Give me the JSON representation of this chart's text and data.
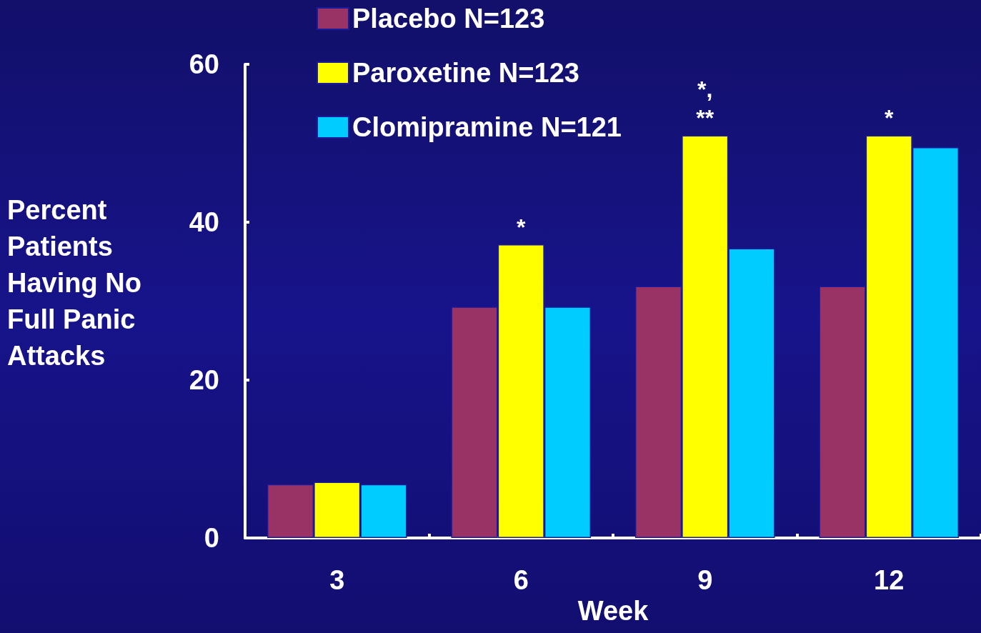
{
  "chart_data": {
    "type": "bar",
    "xlabel": "Week",
    "ylabel": "Percent\nPatients\nHaving No\nFull Panic\nAttacks",
    "categories": [
      "3",
      "6",
      "9",
      "12"
    ],
    "series": [
      {
        "name": "Placebo N=123",
        "color": "#993366",
        "values": [
          6.8,
          29.3,
          31.9,
          31.9
        ]
      },
      {
        "name": "Paroxetine N=123",
        "color": "#ffff00",
        "values": [
          7.1,
          37.2,
          51.0,
          51.0
        ]
      },
      {
        "name": "Clomipramine N=121",
        "color": "#00ccff",
        "values": [
          6.8,
          29.3,
          36.7,
          49.5
        ]
      }
    ],
    "ylim": [
      0,
      60
    ],
    "yticks": [
      0,
      20,
      40,
      60
    ],
    "annotations": [
      {
        "text": "*",
        "x": "6",
        "y": 37.2
      },
      {
        "text": "**",
        "x": "9",
        "y": 51.0
      },
      {
        "text": "*,",
        "x": "9",
        "y": 51.0
      },
      {
        "text": "*",
        "x": "12",
        "y": 51.0
      }
    ],
    "legend": "top left",
    "grid": false
  }
}
